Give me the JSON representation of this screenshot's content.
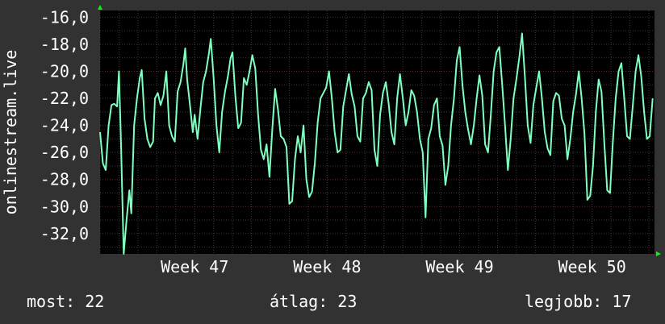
{
  "chart_data": {
    "type": "line",
    "title": "",
    "xlabel": "",
    "ylabel": "onlinestream.live",
    "ylim": [
      -33.5,
      -15.5
    ],
    "x_range_days": [
      0,
      29.3
    ],
    "y_ticks": [
      "-16,0",
      "-18,0",
      "-20,0",
      "-22,0",
      "-24,0",
      "-26,0",
      "-28,0",
      "-30,0",
      "-32,0"
    ],
    "y_tick_values": [
      -16,
      -18,
      -20,
      -22,
      -24,
      -26,
      -28,
      -30,
      -32
    ],
    "x_tick_labels": [
      "Week 47",
      "Week 48",
      "Week 49",
      "Week 50"
    ],
    "x_tick_days": [
      5,
      12,
      19,
      26
    ],
    "grid": true,
    "series": [
      {
        "values": [
          [
            0.0,
            -24.5
          ],
          [
            0.15,
            -26.8
          ],
          [
            0.3,
            -27.3
          ],
          [
            0.45,
            -24.0
          ],
          [
            0.6,
            -22.5
          ],
          [
            0.75,
            -22.4
          ],
          [
            0.9,
            -22.6
          ],
          [
            1.0,
            -20.0
          ],
          [
            1.1,
            -25.0
          ],
          [
            1.25,
            -33.5
          ],
          [
            1.4,
            -31.0
          ],
          [
            1.55,
            -28.8
          ],
          [
            1.65,
            -30.5
          ],
          [
            1.8,
            -24.0
          ],
          [
            1.95,
            -22.0
          ],
          [
            2.1,
            -20.5
          ],
          [
            2.2,
            -19.9
          ],
          [
            2.35,
            -23.5
          ],
          [
            2.5,
            -25.0
          ],
          [
            2.65,
            -25.6
          ],
          [
            2.8,
            -25.2
          ],
          [
            2.9,
            -22.0
          ],
          [
            3.05,
            -21.6
          ],
          [
            3.2,
            -22.5
          ],
          [
            3.35,
            -21.8
          ],
          [
            3.5,
            -20.0
          ],
          [
            3.65,
            -24.0
          ],
          [
            3.8,
            -24.8
          ],
          [
            3.95,
            -25.2
          ],
          [
            4.1,
            -21.5
          ],
          [
            4.25,
            -20.8
          ],
          [
            4.4,
            -19.5
          ],
          [
            4.5,
            -18.3
          ],
          [
            4.6,
            -20.6
          ],
          [
            4.75,
            -22.5
          ],
          [
            4.9,
            -24.5
          ],
          [
            5.0,
            -23.2
          ],
          [
            5.15,
            -25.0
          ],
          [
            5.3,
            -22.8
          ],
          [
            5.45,
            -20.8
          ],
          [
            5.6,
            -20.0
          ],
          [
            5.75,
            -18.7
          ],
          [
            5.85,
            -17.6
          ],
          [
            6.0,
            -20.5
          ],
          [
            6.15,
            -24.0
          ],
          [
            6.3,
            -26.0
          ],
          [
            6.45,
            -23.0
          ],
          [
            6.6,
            -21.5
          ],
          [
            6.75,
            -20.4
          ],
          [
            6.9,
            -19.0
          ],
          [
            7.0,
            -18.6
          ],
          [
            7.15,
            -21.8
          ],
          [
            7.3,
            -24.2
          ],
          [
            7.45,
            -23.8
          ],
          [
            7.6,
            -20.5
          ],
          [
            7.75,
            -21.0
          ],
          [
            7.9,
            -20.0
          ],
          [
            8.05,
            -18.8
          ],
          [
            8.2,
            -19.8
          ],
          [
            8.35,
            -23.2
          ],
          [
            8.5,
            -25.8
          ],
          [
            8.65,
            -26.5
          ],
          [
            8.8,
            -25.4
          ],
          [
            8.95,
            -27.8
          ],
          [
            9.1,
            -24.3
          ],
          [
            9.25,
            -21.3
          ],
          [
            9.4,
            -22.8
          ],
          [
            9.55,
            -24.8
          ],
          [
            9.7,
            -25.0
          ],
          [
            9.85,
            -25.6
          ],
          [
            10.0,
            -29.8
          ],
          [
            10.15,
            -29.6
          ],
          [
            10.3,
            -26.5
          ],
          [
            10.45,
            -24.8
          ],
          [
            10.6,
            -26.0
          ],
          [
            10.75,
            -24.0
          ],
          [
            10.9,
            -28.0
          ],
          [
            11.05,
            -29.3
          ],
          [
            11.2,
            -28.9
          ],
          [
            11.35,
            -26.8
          ],
          [
            11.5,
            -23.8
          ],
          [
            11.65,
            -22.0
          ],
          [
            11.8,
            -21.6
          ],
          [
            11.95,
            -21.2
          ],
          [
            12.1,
            -20.0
          ],
          [
            12.25,
            -22.0
          ],
          [
            12.4,
            -24.5
          ],
          [
            12.55,
            -26.0
          ],
          [
            12.7,
            -25.8
          ],
          [
            12.85,
            -22.6
          ],
          [
            13.0,
            -21.4
          ],
          [
            13.15,
            -20.2
          ],
          [
            13.3,
            -21.7
          ],
          [
            13.45,
            -22.6
          ],
          [
            13.6,
            -24.8
          ],
          [
            13.75,
            -25.2
          ],
          [
            13.9,
            -22.0
          ],
          [
            14.05,
            -21.6
          ],
          [
            14.2,
            -20.8
          ],
          [
            14.35,
            -21.4
          ],
          [
            14.5,
            -25.8
          ],
          [
            14.65,
            -27.0
          ],
          [
            14.8,
            -23.2
          ],
          [
            14.95,
            -21.6
          ],
          [
            15.1,
            -20.8
          ],
          [
            15.25,
            -22.4
          ],
          [
            15.4,
            -24.5
          ],
          [
            15.55,
            -25.4
          ],
          [
            15.7,
            -22.0
          ],
          [
            15.85,
            -20.2
          ],
          [
            16.0,
            -22.0
          ],
          [
            16.15,
            -24.0
          ],
          [
            16.3,
            -23.0
          ],
          [
            16.45,
            -21.4
          ],
          [
            16.6,
            -21.8
          ],
          [
            16.75,
            -23.0
          ],
          [
            16.9,
            -25.0
          ],
          [
            17.05,
            -26.0
          ],
          [
            17.2,
            -30.8
          ],
          [
            17.35,
            -25.0
          ],
          [
            17.5,
            -24.2
          ],
          [
            17.65,
            -22.5
          ],
          [
            17.8,
            -22.0
          ],
          [
            17.95,
            -24.8
          ],
          [
            18.1,
            -25.5
          ],
          [
            18.25,
            -28.4
          ],
          [
            18.4,
            -27.0
          ],
          [
            18.55,
            -24.0
          ],
          [
            18.7,
            -22.0
          ],
          [
            18.85,
            -19.2
          ],
          [
            19.0,
            -18.2
          ],
          [
            19.15,
            -21.0
          ],
          [
            19.3,
            -23.0
          ],
          [
            19.45,
            -24.3
          ],
          [
            19.6,
            -25.4
          ],
          [
            19.75,
            -24.0
          ],
          [
            19.9,
            -22.0
          ],
          [
            20.05,
            -20.3
          ],
          [
            20.2,
            -21.8
          ],
          [
            20.35,
            -25.4
          ],
          [
            20.5,
            -26.0
          ],
          [
            20.65,
            -23.2
          ],
          [
            20.8,
            -20.0
          ],
          [
            20.95,
            -18.6
          ],
          [
            21.1,
            -18.2
          ],
          [
            21.25,
            -21.0
          ],
          [
            21.4,
            -24.0
          ],
          [
            21.55,
            -27.3
          ],
          [
            21.7,
            -25.0
          ],
          [
            21.85,
            -22.0
          ],
          [
            22.0,
            -20.6
          ],
          [
            22.15,
            -19.0
          ],
          [
            22.3,
            -17.2
          ],
          [
            22.45,
            -20.4
          ],
          [
            22.6,
            -24.0
          ],
          [
            22.75,
            -25.3
          ],
          [
            22.9,
            -22.5
          ],
          [
            23.05,
            -21.2
          ],
          [
            23.2,
            -20.0
          ],
          [
            23.35,
            -22.0
          ],
          [
            23.5,
            -24.5
          ],
          [
            23.65,
            -25.7
          ],
          [
            23.8,
            -26.2
          ],
          [
            23.95,
            -22.2
          ],
          [
            24.1,
            -21.6
          ],
          [
            24.25,
            -21.8
          ],
          [
            24.4,
            -23.5
          ],
          [
            24.55,
            -24.0
          ],
          [
            24.7,
            -26.5
          ],
          [
            24.85,
            -25.0
          ],
          [
            25.0,
            -23.0
          ],
          [
            25.15,
            -21.7
          ],
          [
            25.3,
            -20.0
          ],
          [
            25.45,
            -22.0
          ],
          [
            25.6,
            -24.6
          ],
          [
            25.75,
            -29.5
          ],
          [
            25.9,
            -29.2
          ],
          [
            26.05,
            -27.0
          ],
          [
            26.2,
            -23.0
          ],
          [
            26.35,
            -20.6
          ],
          [
            26.5,
            -21.5
          ],
          [
            26.65,
            -25.4
          ],
          [
            26.8,
            -28.8
          ],
          [
            26.95,
            -29.0
          ],
          [
            27.1,
            -25.2
          ],
          [
            27.25,
            -22.0
          ],
          [
            27.4,
            -20.0
          ],
          [
            27.55,
            -19.4
          ],
          [
            27.7,
            -22.0
          ],
          [
            27.85,
            -24.8
          ],
          [
            28.0,
            -25.0
          ],
          [
            28.15,
            -22.6
          ],
          [
            28.3,
            -20.0
          ],
          [
            28.45,
            -18.8
          ],
          [
            28.6,
            -20.4
          ],
          [
            28.75,
            -23.0
          ],
          [
            28.9,
            -25.0
          ],
          [
            29.05,
            -24.8
          ],
          [
            29.2,
            -22.0
          ]
        ]
      }
    ]
  },
  "footer": {
    "most": "most: 22",
    "atlag": "átlag: 23",
    "legjobb": "legjobb: 17"
  },
  "colors": {
    "background": "#323232",
    "plot_bg": "#000000",
    "line": "#7FFFC0",
    "grid_major": "#5a2a2a",
    "grid_minor": "#3a3a3a",
    "arrow": "#00ff00",
    "text": "#ffffff"
  }
}
